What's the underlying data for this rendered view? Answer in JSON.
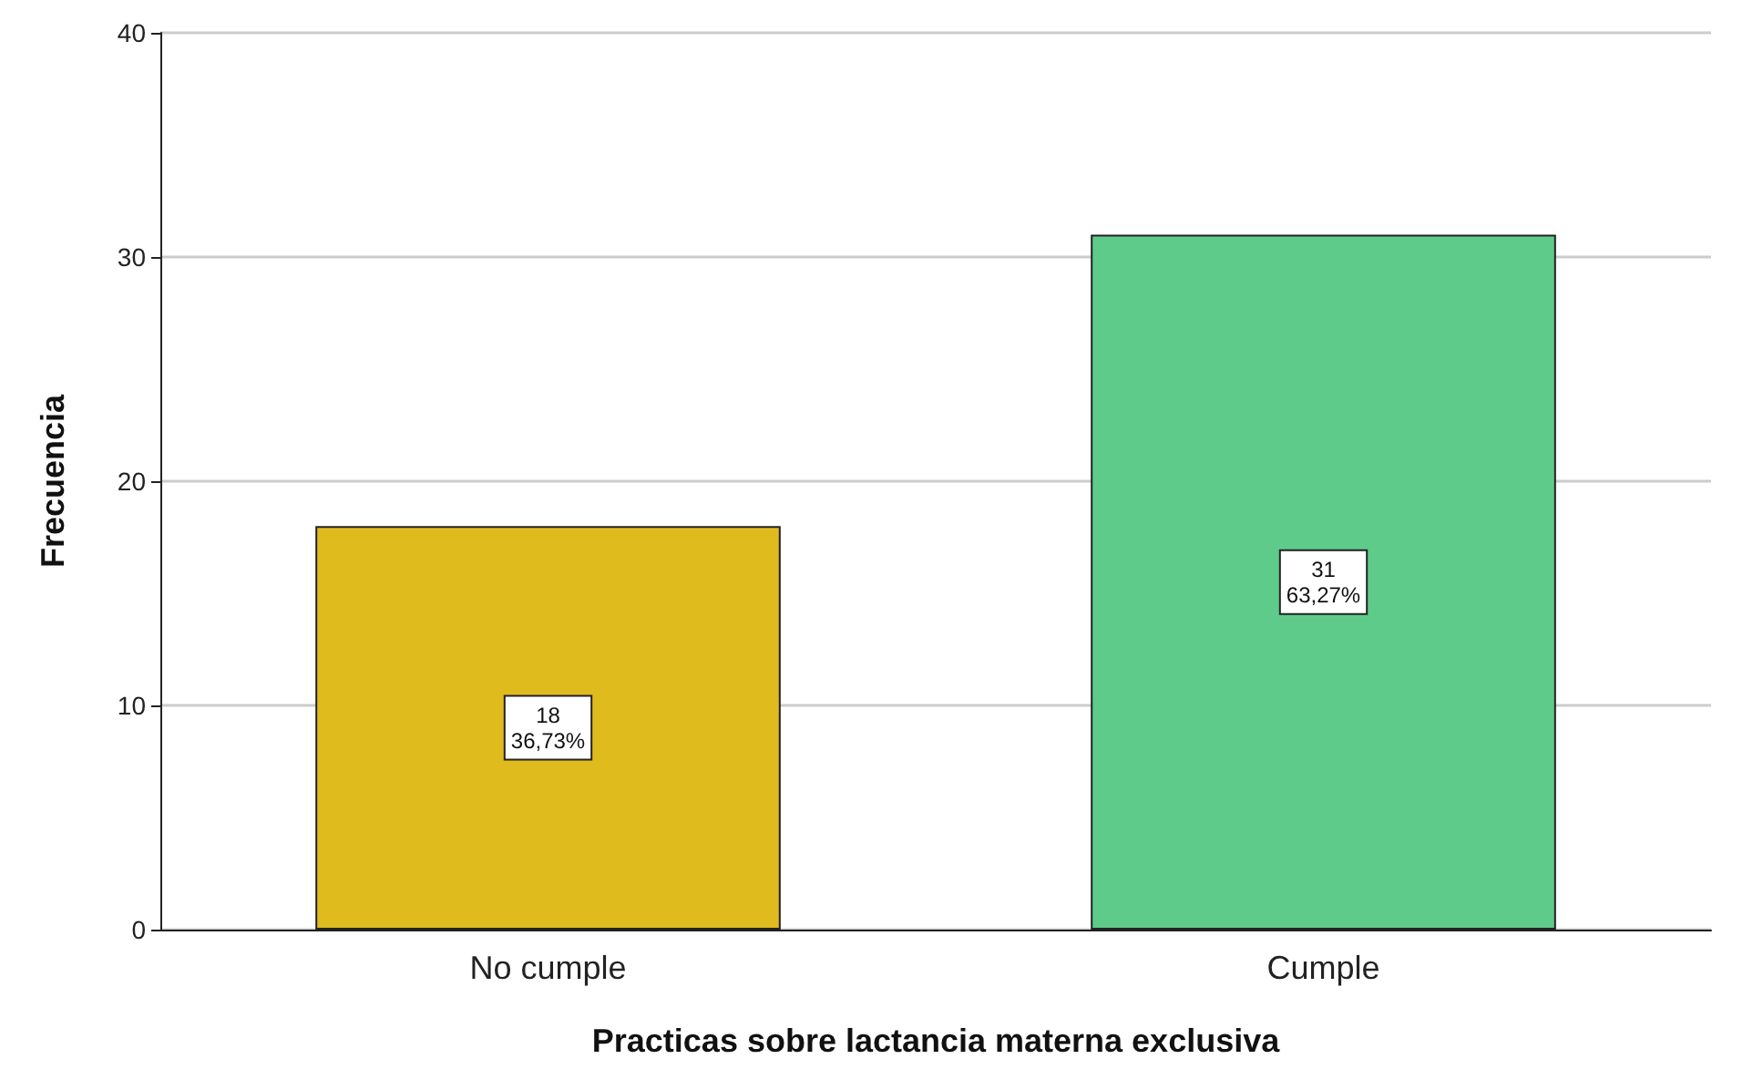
{
  "chart_data": {
    "type": "bar",
    "xlabel": "Practicas sobre lactancia materna exclusiva",
    "ylabel": "Frecuencia",
    "categories": [
      "No cumple",
      "Cumple"
    ],
    "values": [
      18,
      31
    ],
    "colors": [
      "#e0bb1e",
      "#5ecb8a"
    ],
    "value_labels": [
      "18\n36,73%",
      "31\n63,27%"
    ],
    "ylim": [
      0,
      40
    ],
    "yticks": [
      0,
      10,
      20,
      30,
      40
    ],
    "grid": "y"
  }
}
